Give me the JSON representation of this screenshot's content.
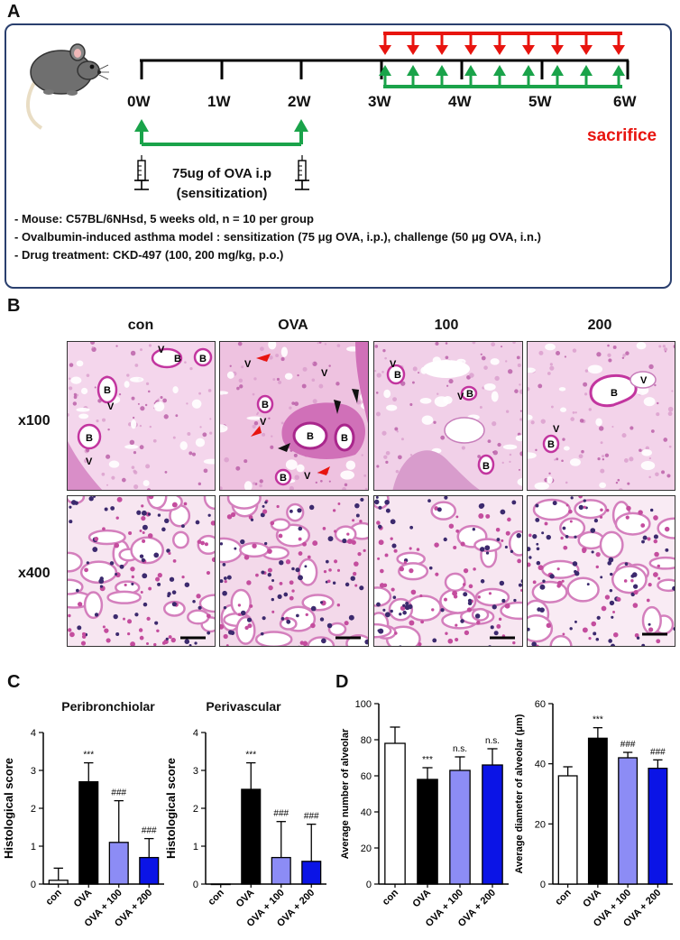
{
  "panel_a": {
    "letter": "A",
    "weeks": [
      "0W",
      "1W",
      "2W",
      "3W",
      "4W",
      "5W",
      "6W"
    ],
    "sacrifice_label": "sacrifice",
    "sensitization_line1": "75ug of OVA  i.p",
    "sensitization_line2": "(sensitization)",
    "notes": [
      "- Mouse: C57BL/6NHsd, 5 weeks old, n = 10 per group",
      "- Ovalbumin-induced asthma model : sensitization (75 μg OVA, i.p.), challenge (50 μg OVA, i.n.)",
      "- Drug treatment: CKD-497 (100, 200 mg/kg, p.o.)"
    ],
    "colors": {
      "challenge": "#e8140f",
      "treatment": "#1aa34a",
      "frame": "#2a3f6e"
    },
    "icons": [
      "mouse-icon",
      "syringe-icon"
    ]
  },
  "panel_b": {
    "letter": "B",
    "columns": [
      "con",
      "OVA",
      "100",
      "200"
    ],
    "rows": [
      "x100",
      "x400"
    ],
    "tile_labels": {
      "con": [
        "B",
        "B",
        "B",
        "V",
        "V",
        "B",
        "V"
      ],
      "ova": [
        "V",
        "B",
        "V",
        "V",
        "B",
        "B",
        "B",
        "V"
      ],
      "d100": [
        "V",
        "B",
        "V",
        "B",
        "B"
      ],
      "d200": [
        "B",
        "V",
        "V",
        "B"
      ]
    }
  },
  "panel_c": {
    "letter": "C",
    "chart_data": [
      {
        "type": "bar",
        "title": "Peribronchiolar",
        "ylabel": "Histological score",
        "categories": [
          "con",
          "OVA",
          "OVA + 100",
          "OVA + 200"
        ],
        "values": [
          0.1,
          2.7,
          1.1,
          0.7
        ],
        "errors": [
          0.32,
          0.5,
          1.1,
          0.5
        ],
        "annotations": [
          "",
          "***",
          "###",
          "###"
        ],
        "ylim": [
          0,
          4
        ],
        "yticks": [
          "0",
          "1",
          "2",
          "3",
          "4"
        ],
        "colors": [
          "#ffffff",
          "#000000",
          "#8c8cf5",
          "#0b14e6"
        ]
      },
      {
        "type": "bar",
        "title": "Perivascular",
        "ylabel": "Histological score",
        "categories": [
          "con",
          "OVA",
          "OVA + 100",
          "OVA + 200"
        ],
        "values": [
          0,
          2.5,
          0.7,
          0.6
        ],
        "errors": [
          0,
          0.7,
          0.95,
          0.98
        ],
        "annotations": [
          "",
          "***",
          "###",
          "###"
        ],
        "ylim": [
          0,
          4
        ],
        "yticks": [
          "0",
          "1",
          "2",
          "3",
          "4"
        ],
        "colors": [
          "#ffffff",
          "#000000",
          "#8c8cf5",
          "#0b14e6"
        ]
      }
    ]
  },
  "panel_d": {
    "letter": "D",
    "chart_data": [
      {
        "type": "bar",
        "title": "",
        "ylabel": "Average number of alveolar",
        "categories": [
          "con",
          "OVA",
          "OVA + 100",
          "OVA + 200"
        ],
        "values": [
          78,
          58,
          63,
          66
        ],
        "errors": [
          9,
          6.5,
          7.5,
          9
        ],
        "annotations": [
          "",
          "***",
          "n.s.",
          "n.s."
        ],
        "ylim": [
          0,
          100
        ],
        "yticks": [
          "0",
          "20",
          "40",
          "60",
          "80",
          "100"
        ],
        "colors": [
          "#ffffff",
          "#000000",
          "#8c8cf5",
          "#0b14e6"
        ]
      },
      {
        "type": "bar",
        "title": "",
        "ylabel": "Average diameter of alveolar (μm)",
        "categories": [
          "con",
          "OVA",
          "OVA + 100",
          "OVA + 200"
        ],
        "values": [
          36,
          48.5,
          42,
          38.5
        ],
        "errors": [
          3,
          3.5,
          1.8,
          2.8
        ],
        "annotations": [
          "",
          "***",
          "###",
          "###"
        ],
        "ylim": [
          0,
          60
        ],
        "yticks": [
          "0",
          "20",
          "40",
          "60"
        ],
        "colors": [
          "#ffffff",
          "#000000",
          "#8c8cf5",
          "#0b14e6"
        ]
      }
    ]
  }
}
